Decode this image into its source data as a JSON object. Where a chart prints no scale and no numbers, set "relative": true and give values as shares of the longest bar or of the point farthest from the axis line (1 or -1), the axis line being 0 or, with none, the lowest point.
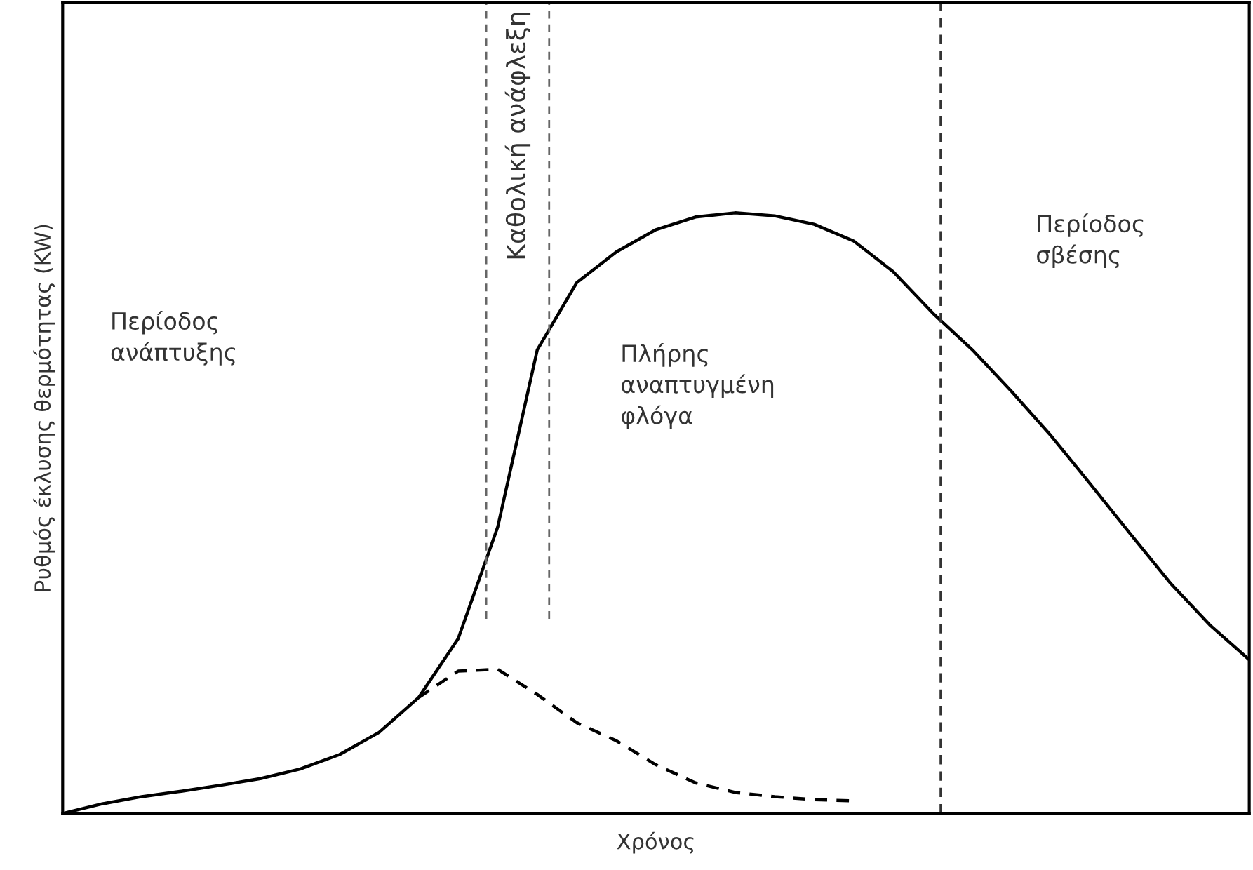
{
  "chart_data": {
    "type": "line",
    "relative": true,
    "xlabel": "Χρόνος",
    "ylabel": "Ρυθμός έκλυσης θερμότητας (KW)",
    "categories": [
      null,
      null,
      null,
      null,
      null,
      null,
      null,
      null,
      null,
      null,
      null,
      null,
      null,
      null,
      null,
      null,
      null,
      null,
      null,
      null,
      null,
      null,
      null,
      null,
      null,
      null,
      null,
      null,
      null,
      null,
      null
    ],
    "series": [
      {
        "color": "#000000",
        "line_style": "solid",
        "values": [
          0,
          0.016,
          0.028,
          0.037,
          0.047,
          0.058,
          0.074,
          0.098,
          0.135,
          0.193,
          0.291,
          0.477,
          0.772,
          0.884,
          0.935,
          0.972,
          0.993,
          1.0,
          0.995,
          0.981,
          0.953,
          0.902,
          0.833,
          0.772,
          0.702,
          0.628,
          0.547,
          0.465,
          0.384,
          0.314,
          0.256
        ]
      },
      {
        "color": "#000000",
        "line_style": "dashed",
        "values": [
          null,
          null,
          null,
          null,
          null,
          null,
          null,
          null,
          null,
          0.193,
          0.237,
          0.24,
          0.198,
          0.151,
          0.121,
          0.081,
          0.051,
          0.035,
          0.028,
          0.023,
          0.021,
          null,
          null,
          null,
          null,
          null,
          null,
          null,
          null,
          null,
          null
        ]
      }
    ],
    "annotations": [
      "Περίοδος\nανάπτυξης",
      "Καθολική ανάφλεξη",
      "Πλήρης\nαναπτυγμένη\nφλόγα",
      "Περίοδος\nσβέσης"
    ],
    "grid": false,
    "legend": false,
    "marker": "none"
  }
}
